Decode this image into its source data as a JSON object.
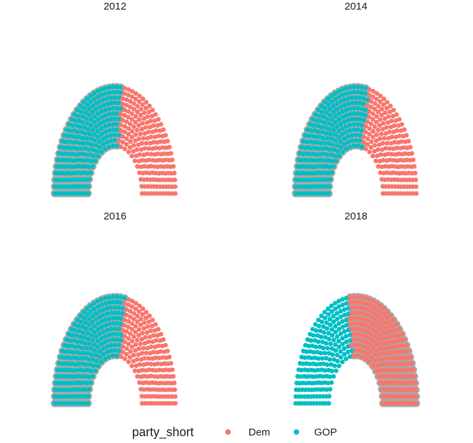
{
  "chart_data": {
    "type": "scatter",
    "subtype": "parliament",
    "total_seats": 435,
    "rows": 12,
    "facet_by": "year",
    "majority_highlight": "grey outline on seats of the majority party",
    "grid": false,
    "axes": false,
    "legend": {
      "position": "bottom",
      "title": "party_short",
      "entries": [
        {
          "label": "Dem",
          "color": "#F8766D"
        },
        {
          "label": "GOP",
          "color": "#00BFC4"
        }
      ]
    },
    "panels": [
      {
        "title": "2012",
        "seats": {
          "GOP": 234,
          "Dem": 201
        },
        "majority": "GOP"
      },
      {
        "title": "2014",
        "seats": {
          "GOP": 247,
          "Dem": 188
        },
        "majority": "GOP"
      },
      {
        "title": "2016",
        "seats": {
          "GOP": 241,
          "Dem": 194
        },
        "majority": "GOP"
      },
      {
        "title": "2018",
        "seats": {
          "GOP": 200,
          "Dem": 235
        },
        "majority": "Dem"
      }
    ]
  },
  "colors": {
    "dem": "#F8766D",
    "gop": "#00BFC4",
    "majority_outline": "#A9A9A9"
  }
}
